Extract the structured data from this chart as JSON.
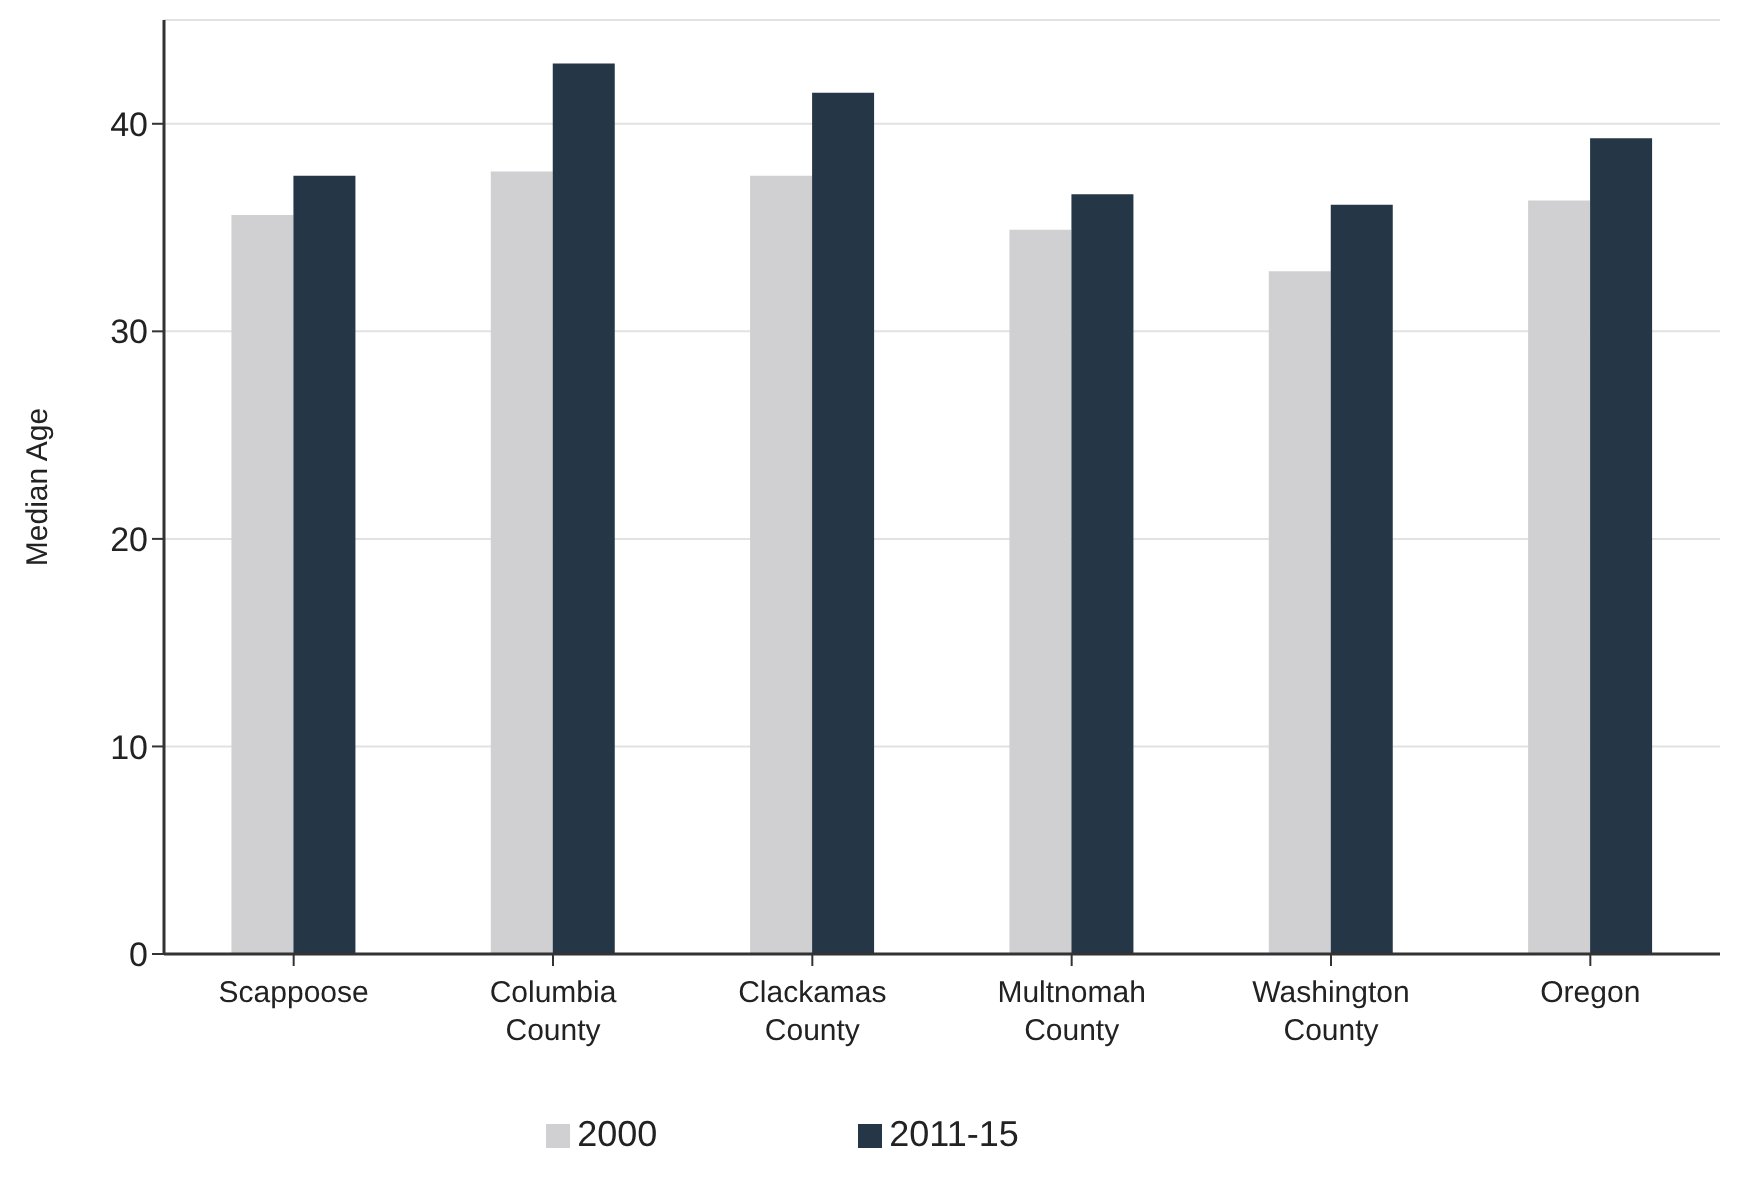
{
  "chart_data": {
    "type": "bar",
    "ylabel": "Median Age",
    "categories": [
      "Scappoose",
      "Columbia County",
      "Clackamas County",
      "Multnomah County",
      "Washington County",
      "Oregon"
    ],
    "series": [
      {
        "name": "2000",
        "color": "#d0d0d2",
        "values": [
          35.6,
          37.7,
          37.5,
          34.9,
          32.9,
          36.3
        ]
      },
      {
        "name": "2011-15",
        "color": "#253746",
        "values": [
          37.5,
          42.9,
          41.5,
          36.6,
          36.1,
          39.3
        ]
      }
    ],
    "ylim": [
      0,
      45
    ],
    "yticks": [
      0,
      10,
      20,
      30,
      40
    ],
    "grid": "y",
    "legend": "bottom"
  }
}
